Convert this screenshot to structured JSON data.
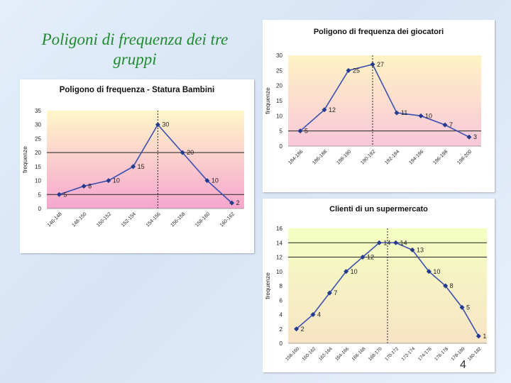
{
  "slide": {
    "title": "Poligoni di frequenza dei tre gruppi",
    "page_number": "4"
  },
  "chart_data": [
    {
      "id": "bambini",
      "type": "line",
      "title": "Poligono di frequenza - Statura Bambini",
      "xlabel": "",
      "ylabel": "frequenze",
      "categories": [
        "146-148",
        "148-150",
        "150-152",
        "152-154",
        "154-156",
        "156-158",
        "158-160",
        "160-162"
      ],
      "values": [
        5,
        8,
        10,
        15,
        30,
        20,
        10,
        2
      ],
      "ylim": [
        0,
        35
      ],
      "yticks": [
        0,
        5,
        10,
        15,
        20,
        25,
        30,
        35
      ],
      "reference_lines_y": [
        5,
        20
      ],
      "vertical_marker_index": 4,
      "background": {
        "top": "#fff7c9",
        "bottom": "#f6a6cf"
      },
      "line_color": "#3a4fb0",
      "grid": false
    },
    {
      "id": "giocatori",
      "type": "line",
      "title": "Poligono di frequenza dei giocatori",
      "xlabel": "",
      "ylabel": "frequenze",
      "categories": [
        "184-186",
        "186-188",
        "188-190",
        "190-192",
        "192-194",
        "194-196",
        "196-198",
        "198-200"
      ],
      "values": [
        5,
        12,
        25,
        27,
        11,
        10,
        7,
        3
      ],
      "ylim": [
        0,
        30
      ],
      "yticks": [
        0,
        5,
        10,
        15,
        20,
        25,
        30
      ],
      "reference_lines_y": [
        5
      ],
      "vertical_marker_index": 3,
      "background": {
        "top": "#fff3c4",
        "bottom": "#f8c7da"
      },
      "line_color": "#3a4fb0",
      "grid": false
    },
    {
      "id": "supermercato",
      "type": "line",
      "title": "Clienti di un supermercato",
      "xlabel": "",
      "ylabel": "frequenze",
      "categories": [
        "158-160",
        "160-162",
        "162-164",
        "164-166",
        "166-168",
        "168-170",
        "170-172",
        "172-174",
        "174-176",
        "176-178",
        "178-180",
        "180-182"
      ],
      "values": [
        2,
        4,
        7,
        10,
        12,
        14,
        14,
        13,
        10,
        8,
        5,
        1
      ],
      "ylim": [
        0,
        16
      ],
      "yticks": [
        0,
        2,
        4,
        6,
        8,
        10,
        12,
        14,
        16
      ],
      "reference_lines_y": [
        12,
        14
      ],
      "vertical_marker_index": 5.5,
      "background": {
        "top": "#f4ffc2",
        "bottom": "#f8e3c5"
      },
      "line_color": "#3a4fb0",
      "grid": false
    }
  ]
}
